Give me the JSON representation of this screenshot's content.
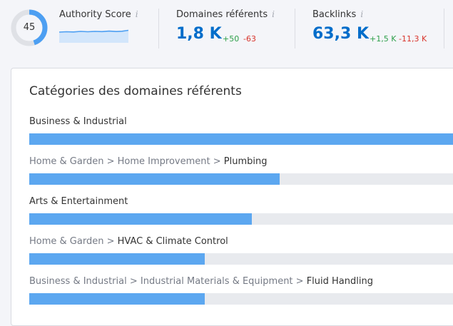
{
  "metrics": {
    "authority": {
      "title": "Authority Score",
      "info_icon": "i",
      "score": "45",
      "score_fraction": 0.45,
      "ring_color": "#4d9ff2",
      "ring_track_color": "#dfe1e6"
    },
    "referring_domains": {
      "title": "Domaines référents",
      "info_icon": "i",
      "value": "1,8 K",
      "delta_up": "+50",
      "delta_down": "-63"
    },
    "backlinks": {
      "title": "Backlinks",
      "info_icon": "i",
      "value": "63,3 K",
      "delta_up": "+1,5 K",
      "delta_down": "-11,3 K"
    }
  },
  "categories": {
    "title": "Catégories des domaines référents",
    "bar_color": "#5ca7f0",
    "track_color": "#e8eaee",
    "items": [
      {
        "crumbs": [],
        "last": "Business & Industrial",
        "fraction": 1.0
      },
      {
        "crumbs": [
          "Home & Garden",
          "Home Improvement"
        ],
        "last": "Plumbing",
        "fraction": 0.585
      },
      {
        "crumbs": [],
        "last": "Arts & Entertainment",
        "fraction": 0.52
      },
      {
        "crumbs": [
          "Home & Garden"
        ],
        "last": "HVAC & Climate Control",
        "fraction": 0.41
      },
      {
        "crumbs": [
          "Business & Industrial",
          "Industrial Materials & Equipment"
        ],
        "last": "Fluid Handling",
        "fraction": 0.41
      }
    ]
  },
  "colors": {
    "accent": "#006dca",
    "positive": "#2e9f4a",
    "negative": "#d8342c"
  }
}
